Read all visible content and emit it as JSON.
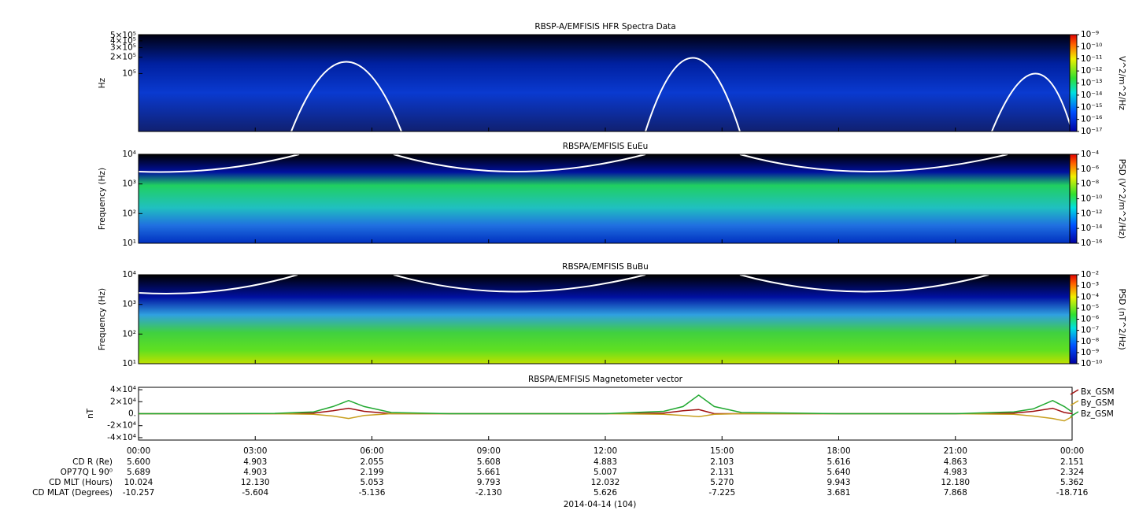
{
  "chart_data": [
    {
      "type": "spectrogram",
      "title": "RBSP-A/EMFISIS  HFR Spectra Data",
      "ylabel": "Hz",
      "yscale": "log",
      "ylim": [
        8600,
        520000
      ],
      "yticks": [
        {
          "value": 500000,
          "label": "5×10⁵"
        },
        {
          "value": 400000,
          "label": "4×10⁵"
        },
        {
          "value": 300000,
          "label": "3×10⁵"
        },
        {
          "value": 200000,
          "label": "2×10⁵"
        },
        {
          "value": 100000,
          "label": "10⁵"
        }
      ],
      "zlabel": "V^2/m^2/Hz",
      "zscale": "log",
      "zlim": [
        1e-17,
        1e-09
      ],
      "zticks": [
        {
          "value": 1e-09,
          "label": "10⁻⁹"
        },
        {
          "value": 1e-10,
          "label": "10⁻¹⁰"
        },
        {
          "value": 1e-11,
          "label": "10⁻¹¹"
        },
        {
          "value": 1e-12,
          "label": "10⁻¹²"
        },
        {
          "value": 1e-13,
          "label": "10⁻¹³"
        },
        {
          "value": 1e-14,
          "label": "10⁻¹⁴"
        },
        {
          "value": 1e-15,
          "label": "10⁻¹⁵"
        },
        {
          "value": 1e-16,
          "label": "10⁻¹⁶"
        },
        {
          "value": 1e-17,
          "label": "10⁻¹⁷"
        }
      ]
    },
    {
      "type": "spectrogram",
      "title": "RBSPA/EMFISIS  EuEu",
      "ylabel": "Frequency (Hz)",
      "yscale": "log",
      "ylim": [
        10,
        10000
      ],
      "yticks": [
        {
          "value": 10,
          "label": "10¹"
        },
        {
          "value": 100,
          "label": "10²"
        },
        {
          "value": 1000,
          "label": "10³"
        },
        {
          "value": 10000,
          "label": "10⁴"
        }
      ],
      "zlabel": "PSD (V^2/m^2/Hz)",
      "zscale": "log",
      "zlim": [
        1e-16,
        0.0001
      ],
      "zticks": [
        {
          "value": 0.0001,
          "label": "10⁻⁴"
        },
        {
          "value": 1e-06,
          "label": "10⁻⁶"
        },
        {
          "value": 1e-08,
          "label": "10⁻⁸"
        },
        {
          "value": 1e-10,
          "label": "10⁻¹⁰"
        },
        {
          "value": 1e-12,
          "label": "10⁻¹²"
        },
        {
          "value": 1e-14,
          "label": "10⁻¹⁴"
        },
        {
          "value": 1e-16,
          "label": "10⁻¹⁶"
        }
      ]
    },
    {
      "type": "spectrogram",
      "title": "RBSPA/EMFISIS  BuBu",
      "ylabel": "Frequency (Hz)",
      "yscale": "log",
      "ylim": [
        10,
        10000
      ],
      "yticks": [
        {
          "value": 10,
          "label": "10¹"
        },
        {
          "value": 100,
          "label": "10²"
        },
        {
          "value": 1000,
          "label": "10³"
        },
        {
          "value": 10000,
          "label": "10⁴"
        }
      ],
      "zlabel": "PSD (nT^2/Hz)",
      "zscale": "log",
      "zlim": [
        1e-10,
        0.01
      ],
      "zticks": [
        {
          "value": 0.01,
          "label": "10⁻²"
        },
        {
          "value": 0.001,
          "label": "10⁻³"
        },
        {
          "value": 0.0001,
          "label": "10⁻⁴"
        },
        {
          "value": 1e-05,
          "label": "10⁻⁵"
        },
        {
          "value": 1e-06,
          "label": "10⁻⁶"
        },
        {
          "value": 1e-07,
          "label": "10⁻⁷"
        },
        {
          "value": 1e-08,
          "label": "10⁻⁸"
        },
        {
          "value": 1e-09,
          "label": "10⁻⁹"
        },
        {
          "value": 1e-10,
          "label": "10⁻¹⁰"
        }
      ]
    },
    {
      "type": "line",
      "title": "RBSPA/EMFISIS  Magnetometer vector",
      "ylabel": "nT",
      "ylim": [
        -44000,
        44000
      ],
      "yticks": [
        {
          "value": 40000,
          "label": "4×10⁴"
        },
        {
          "value": 20000,
          "label": "2×10⁴"
        },
        {
          "value": 0,
          "label": "0."
        },
        {
          "value": -20000,
          "label": "-2×10⁴"
        },
        {
          "value": -40000,
          "label": "-4×10⁴"
        }
      ],
      "xlim": [
        0,
        24
      ],
      "xticks": [
        {
          "value": 0,
          "label": "00:00"
        },
        {
          "value": 3,
          "label": "03:00"
        },
        {
          "value": 6,
          "label": "06:00"
        },
        {
          "value": 9,
          "label": "09:00"
        },
        {
          "value": 12,
          "label": "12:00"
        },
        {
          "value": 15,
          "label": "15:00"
        },
        {
          "value": 18,
          "label": "18:00"
        },
        {
          "value": 21,
          "label": "21:00"
        },
        {
          "value": 24,
          "label": "00:00"
        }
      ],
      "x": [
        0,
        2,
        3.5,
        4.5,
        5,
        5.4,
        5.8,
        6.5,
        8,
        10,
        12,
        13.5,
        14,
        14.4,
        14.8,
        15.5,
        18,
        21,
        22.5,
        23,
        23.5,
        23.8,
        24
      ],
      "series": [
        {
          "name": "Bx_GSM",
          "color": "#a01010",
          "values": [
            0,
            0,
            0,
            1000,
            5000,
            9000,
            4000,
            0,
            0,
            0,
            0,
            1000,
            5000,
            7000,
            0,
            0,
            0,
            0,
            1000,
            4000,
            9000,
            2000,
            0
          ]
        },
        {
          "name": "By_GSM",
          "color": "#c8a020",
          "values": [
            0,
            0,
            0,
            -1000,
            -4000,
            -8000,
            -3000,
            0,
            0,
            0,
            0,
            -1000,
            -3000,
            -5000,
            -1000,
            0,
            0,
            0,
            -1000,
            -4000,
            -8000,
            -12000,
            -5000
          ]
        },
        {
          "name": "Bz_GSM",
          "color": "#20a830",
          "values": [
            0,
            0,
            500,
            3000,
            12000,
            22000,
            12000,
            2000,
            0,
            0,
            0,
            4000,
            12000,
            31000,
            12000,
            2000,
            0,
            0,
            3000,
            8000,
            22000,
            12000,
            3000
          ]
        }
      ]
    }
  ],
  "ephemeris": {
    "rows": [
      {
        "label": "CD R (Re)",
        "values": [
          "5.600",
          "4.903",
          "2.055",
          "5.608",
          "4.883",
          "2.103",
          "5.616",
          "4.863",
          "2.151"
        ]
      },
      {
        "label": "OP77Q L 90⁰",
        "values": [
          "5.689",
          "4.903",
          "2.199",
          "5.661",
          "5.007",
          "2.131",
          "5.640",
          "4.983",
          "2.324"
        ]
      },
      {
        "label": "CD MLT (Hours)",
        "values": [
          "10.024",
          "12.130",
          "5.053",
          "9.793",
          "12.032",
          "5.270",
          "9.943",
          "12.180",
          "5.362"
        ]
      },
      {
        "label": "CD MLAT (Degrees)",
        "values": [
          "-10.257",
          "-5.604",
          "-5.136",
          "-2.130",
          "5.626",
          "-7.225",
          "3.681",
          "7.868",
          "-18.716"
        ]
      }
    ],
    "date": "2014-04-14 (104)"
  }
}
